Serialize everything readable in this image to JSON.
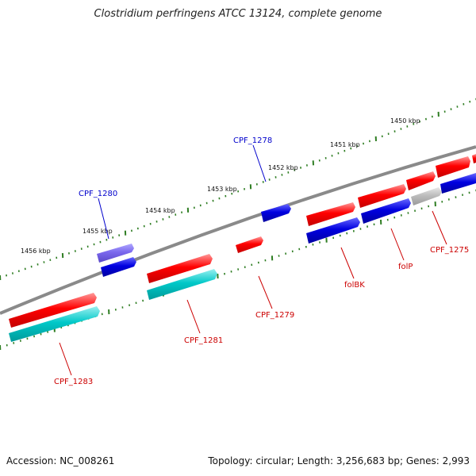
{
  "title": "Clostridium perfringens ATCC 13124, complete genome",
  "footer": {
    "accession": "Accession: NC_008261",
    "topology": "Topology: circular; Length: 3,256,683 bp; Genes: 2,993"
  },
  "ruler_labels": [
    "1450 kbp",
    "1451 kbp",
    "1452 kbp",
    "1453 kbp",
    "1454 kbp",
    "1455 kbp",
    "1456 kbp"
  ],
  "gene_labels": [
    "CPF_1278",
    "CPF_1280",
    "CPF_1275",
    "folP",
    "folBK",
    "CPF_1279",
    "CPF_1281",
    "CPF_1283"
  ],
  "colors": {
    "forward_gene": "#ff0000",
    "reverse_gene": "#0000dd",
    "rna_gene": "#00c8c8",
    "other_gene": "#7b68ee",
    "pseudo_gene": "#b8b8b8",
    "backbone": "#808080",
    "tick": "#2e7d22",
    "label_blue": "#0000cc",
    "label_red": "#cc0000"
  }
}
